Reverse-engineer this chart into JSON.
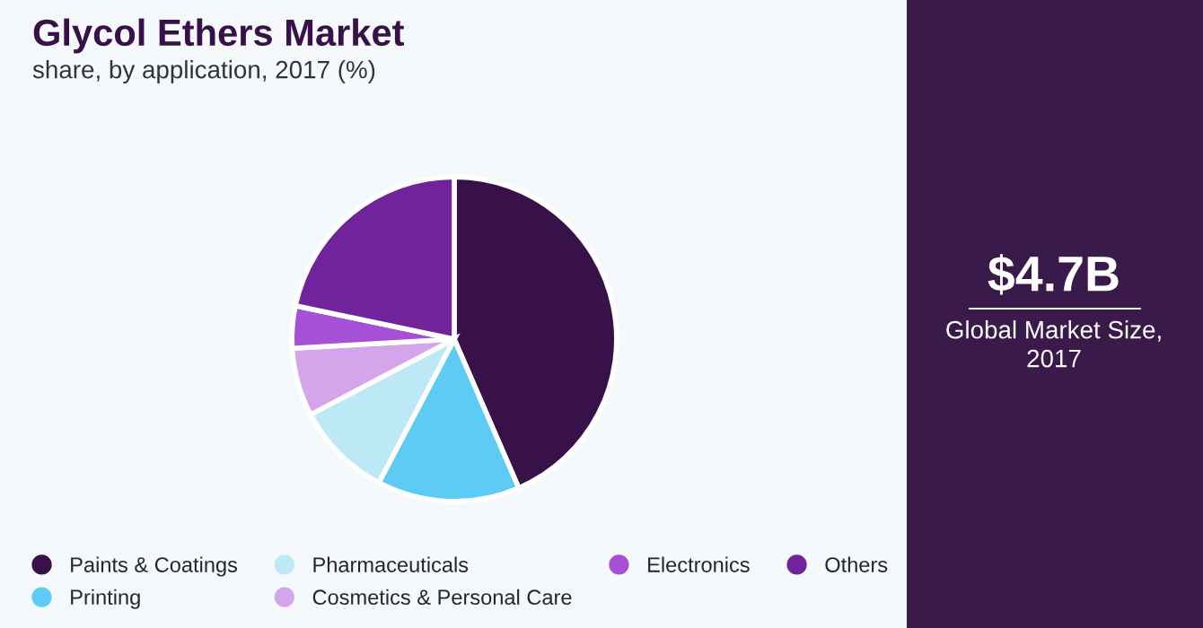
{
  "chart_data": {
    "type": "pie",
    "title": "Glycol Ethers Market",
    "subtitle": "share, by application, 2017 (%)",
    "categories": [
      "Paints & Coatings",
      "Printing",
      "Pharmaceuticals",
      "Cosmetics & Personal Care",
      "Electronics",
      "Others"
    ],
    "values": [
      43.5,
      14.2,
      9.6,
      6.8,
      4.2,
      21.7
    ],
    "colors": [
      "#371147",
      "#5ecbf5",
      "#bde9f7",
      "#d4a5ea",
      "#a650d6",
      "#70239b"
    ],
    "legend": "bottom",
    "annotations": [
      "$4.7B",
      "Global Market Size,\n2017"
    ]
  }
}
